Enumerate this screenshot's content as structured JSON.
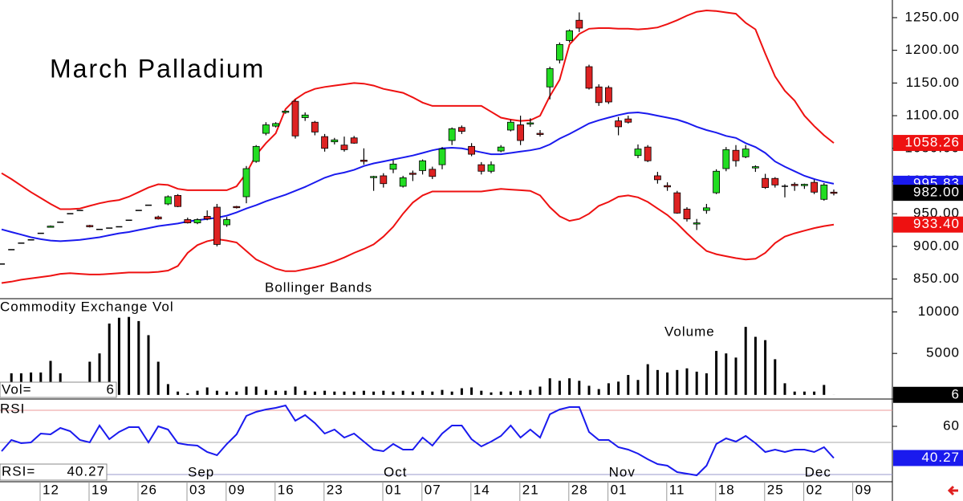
{
  "chart_data": [
    {
      "type": "candlestick",
      "title": "March Palladium",
      "annotation": "Bollinger Bands",
      "up_color": "#22dd22",
      "down_color": "#dd2222",
      "open": [
        873,
        895,
        905,
        910,
        920,
        930,
        937,
        950,
        955,
        932,
        926,
        928,
        930,
        940,
        955,
        963,
        945,
        965,
        978,
        941,
        936,
        946,
        960,
        933,
        961,
        976,
        1030,
        1073,
        1084,
        1105,
        1122,
        1097,
        1090,
        1068,
        1060,
        1055,
        1066,
        1032,
        1006,
        1008,
        1018,
        992,
        1012,
        1016,
        1018,
        1025,
        1062,
        1082,
        1053,
        1025,
        1015,
        1046,
        1078,
        1086,
        1088,
        1073,
        1144,
        1185,
        1215,
        1246,
        1175,
        1144,
        1143,
        1092,
        1095,
        1039,
        1052,
        1008,
        993,
        982,
        957,
        935,
        955,
        982,
        1019,
        1047,
        1037,
        1020,
        1004,
        1004,
        992,
        995,
        993,
        998,
        972,
        983,
        null,
        null,
        null
      ],
      "high": [
        873,
        895,
        905,
        910,
        920,
        932,
        937,
        950,
        955,
        933,
        926,
        928,
        930,
        940,
        955,
        963,
        947,
        978,
        980,
        944,
        943,
        955,
        965,
        945,
        962,
        1023,
        1055,
        1090,
        1090,
        1108,
        1125,
        1105,
        1092,
        1072,
        1066,
        1068,
        1069,
        1050,
        1008,
        1012,
        1032,
        1008,
        1016,
        1033,
        1022,
        1052,
        1082,
        1085,
        1058,
        1029,
        1030,
        1055,
        1094,
        1100,
        1096,
        1078,
        1175,
        1212,
        1232,
        1258,
        1178,
        1148,
        1146,
        1098,
        1100,
        1056,
        1055,
        1014,
        998,
        985,
        960,
        942,
        965,
        1018,
        1052,
        1055,
        1055,
        1024,
        1011,
        1006,
        995,
        998,
        996,
        1002,
        997,
        987,
        null,
        null,
        null
      ],
      "low": [
        873,
        895,
        905,
        910,
        920,
        929,
        937,
        950,
        955,
        929,
        926,
        928,
        930,
        940,
        955,
        963,
        941,
        963,
        960,
        935,
        934,
        940,
        900,
        930,
        958,
        966,
        1028,
        1070,
        1082,
        1103,
        1065,
        1092,
        1070,
        1045,
        1056,
        1045,
        1057,
        1025,
        985,
        990,
        1012,
        990,
        1000,
        1010,
        1003,
        1018,
        1055,
        1072,
        1038,
        1010,
        1012,
        1044,
        1076,
        1055,
        1083,
        1068,
        1125,
        1180,
        1212,
        1228,
        1140,
        1115,
        1118,
        1070,
        1088,
        1035,
        1029,
        996,
        985,
        950,
        938,
        925,
        950,
        980,
        1015,
        1022,
        1035,
        1014,
        988,
        990,
        975,
        985,
        988,
        980,
        970,
        978,
        null,
        null,
        null
      ],
      "close": [
        873,
        895,
        905,
        910,
        920,
        931,
        937,
        950,
        955,
        930,
        926,
        928,
        930,
        940,
        955,
        963,
        942,
        976,
        961,
        936,
        941,
        942,
        903,
        941,
        960,
        1019,
        1053,
        1086,
        1088,
        1107,
        1069,
        1101,
        1075,
        1050,
        1063,
        1048,
        1058,
        1030,
        1007,
        996,
        1026,
        1005,
        1011,
        1031,
        1007,
        1049,
        1080,
        1076,
        1041,
        1015,
        1025,
        1052,
        1090,
        1062,
        1089,
        1072,
        1172,
        1209,
        1230,
        1234,
        1142,
        1120,
        1121,
        1083,
        1090,
        1049,
        1031,
        1002,
        991,
        951,
        942,
        936,
        959,
        1015,
        1048,
        1031,
        1049,
        1022,
        990,
        994,
        992,
        993,
        995,
        983,
        994,
        982,
        null,
        null,
        null
      ],
      "close_label": "982.00",
      "series": [
        {
          "color": "#ee1111",
          "values": [
            1012,
            1003,
            993,
            983,
            974,
            965,
            957,
            957,
            958,
            962,
            966,
            969,
            971,
            976,
            983,
            990,
            995,
            994,
            988,
            986,
            986,
            986,
            986,
            986,
            992,
            1012,
            1040,
            1058,
            1073,
            1110,
            1125,
            1135,
            1141,
            1144,
            1146,
            1148,
            1150,
            1149,
            1146,
            1141,
            1138,
            1135,
            1128,
            1120,
            1115,
            1115,
            1115,
            1115,
            1115,
            1115,
            1106,
            1097,
            1094,
            1092,
            1093,
            1100,
            1130,
            1155,
            1209,
            1225,
            1233,
            1234,
            1234,
            1233,
            1233,
            1232,
            1233,
            1235,
            1240,
            1246,
            1253,
            1259,
            1261,
            1260,
            1258,
            1256,
            1242,
            1232,
            1195,
            1160,
            1138,
            1123,
            1100,
            1084,
            1070,
            1058.26,
            null,
            null,
            null
          ]
        },
        {
          "color": "#1a1aee",
          "values": [
            926,
            922,
            918,
            914,
            911,
            909,
            908,
            909,
            910,
            912,
            914,
            917,
            920,
            922,
            925,
            928,
            931,
            933,
            935,
            938,
            940,
            942,
            944,
            947,
            952,
            958,
            963,
            969,
            974,
            979,
            985,
            991,
            998,
            1005,
            1010,
            1013,
            1017,
            1023,
            1027,
            1030,
            1033,
            1036,
            1039,
            1043,
            1047,
            1050,
            1051,
            1050,
            1047,
            1044,
            1041,
            1041,
            1043,
            1045,
            1047,
            1050,
            1056,
            1065,
            1072,
            1080,
            1088,
            1093,
            1097,
            1101,
            1104,
            1105,
            1103,
            1100,
            1097,
            1094,
            1089,
            1083,
            1078,
            1074,
            1069,
            1066,
            1058,
            1052,
            1043,
            1030,
            1022,
            1015,
            1008,
            1003,
            999,
            995.83,
            null,
            null,
            null
          ]
        },
        {
          "color": "#ee1111",
          "last_label": "933.40",
          "values": [
            844,
            846,
            849,
            851,
            853,
            855,
            858,
            859,
            858,
            857,
            857,
            858,
            859,
            860,
            860,
            860,
            861,
            863,
            870,
            890,
            902,
            908,
            911,
            909,
            906,
            893,
            880,
            873,
            866,
            862,
            862,
            865,
            868,
            872,
            877,
            883,
            890,
            896,
            903,
            915,
            930,
            950,
            967,
            978,
            984,
            984,
            984,
            984,
            984,
            984,
            986,
            988,
            987,
            986,
            985,
            978,
            960,
            946,
            939,
            942,
            950,
            962,
            968,
            976,
            978,
            975,
            968,
            958,
            948,
            935,
            920,
            906,
            893,
            888,
            885,
            882,
            880,
            881,
            890,
            905,
            915,
            920,
            924,
            928,
            931,
            933.4,
            null,
            null,
            null
          ]
        }
      ],
      "ylim": [
        820,
        1277
      ],
      "yticks": [
        {
          "value": 850,
          "label": "850.00"
        },
        {
          "value": 900,
          "label": "900.00"
        },
        {
          "value": 950,
          "label": "950.00"
        },
        {
          "value": 1000,
          "label": "1000.00"
        },
        {
          "value": 1050,
          "label": "1050.00"
        },
        {
          "value": 1100,
          "label": "1100.00"
        },
        {
          "value": 1150,
          "label": "1150.00"
        },
        {
          "value": 1200,
          "label": "1200.00"
        },
        {
          "value": 1250,
          "label": "1250.00"
        }
      ]
    },
    {
      "type": "bar",
      "title": "Commodity Exchange Vol",
      "annotation": "Volume",
      "value_name": "Vol=",
      "color": "#000000",
      "values": [
        0,
        2600,
        2600,
        2700,
        2700,
        4100,
        2600,
        0,
        0,
        4000,
        5000,
        8600,
        9300,
        9400,
        8900,
        7200,
        4000,
        1300,
        400,
        200,
        500,
        900,
        500,
        400,
        400,
        1000,
        1000,
        600,
        500,
        500,
        1000,
        500,
        400,
        500,
        400,
        400,
        400,
        500,
        400,
        500,
        400,
        500,
        400,
        500,
        400,
        600,
        400,
        800,
        900,
        500,
        300,
        400,
        400,
        500,
        600,
        1000,
        2000,
        1700,
        2000,
        1700,
        1100,
        700,
        1400,
        1600,
        2400,
        1800,
        3700,
        3000,
        2700,
        3000,
        3200,
        2800,
        2600,
        5300,
        5000,
        4500,
        8200,
        7000,
        6600,
        4300,
        1400,
        400,
        400,
        400,
        1200,
        6,
        null,
        null,
        null
      ],
      "ylim": [
        -500,
        11600
      ],
      "yticks": [
        5000,
        10000
      ]
    },
    {
      "type": "line",
      "title": "RSI",
      "value_name": "RSI=",
      "categories": [
        null,
        null,
        null,
        null,
        null,
        "12",
        null,
        null,
        null,
        null,
        "19",
        null,
        null,
        null,
        null,
        "26",
        null,
        null,
        null,
        null,
        "03",
        null,
        null,
        null,
        "09",
        null,
        null,
        null,
        null,
        "16",
        null,
        null,
        null,
        null,
        "23",
        null,
        null,
        null,
        null,
        null,
        "01",
        null,
        null,
        null,
        "07",
        null,
        null,
        null,
        null,
        "14",
        null,
        null,
        null,
        null,
        "21",
        null,
        null,
        null,
        null,
        "28",
        null,
        null,
        null,
        "01",
        null,
        null,
        null,
        null,
        null,
        "11",
        null,
        null,
        null,
        null,
        "18",
        null,
        null,
        null,
        null,
        "25",
        null,
        null,
        null,
        "02",
        null,
        null,
        null,
        null,
        "09"
      ],
      "months": [
        null,
        null,
        null,
        null,
        null,
        null,
        null,
        null,
        null,
        null,
        null,
        null,
        null,
        null,
        null,
        null,
        null,
        null,
        null,
        null,
        "Sep",
        null,
        null,
        null,
        null,
        null,
        null,
        null,
        null,
        null,
        null,
        null,
        null,
        null,
        null,
        null,
        null,
        null,
        null,
        null,
        "Oct",
        null,
        null,
        null,
        null,
        null,
        null,
        null,
        null,
        null,
        null,
        null,
        null,
        null,
        null,
        null,
        null,
        null,
        null,
        null,
        null,
        null,
        null,
        "Nov",
        null,
        null,
        null,
        null,
        null,
        null,
        null,
        null,
        null,
        null,
        null,
        null,
        null,
        null,
        null,
        null,
        null,
        null,
        null,
        "Dec",
        null,
        null,
        null,
        null,
        null
      ],
      "series": [
        {
          "color": "#1a1aee",
          "values": [
            44.5,
            51.5,
            49.5,
            50,
            55.5,
            55,
            59,
            57,
            51.5,
            50,
            60.5,
            52,
            56.5,
            59.5,
            59.5,
            50,
            60,
            58,
            49.5,
            48.5,
            48,
            44,
            42,
            49,
            55,
            66.5,
            69,
            70.5,
            71.5,
            73,
            63.5,
            67,
            62,
            55.5,
            58,
            53,
            55.5,
            50.5,
            45.5,
            44.5,
            49,
            45.5,
            45.5,
            53,
            48,
            55.5,
            60.5,
            60.5,
            52,
            47.5,
            50.5,
            54,
            60.5,
            53,
            58,
            53,
            67.5,
            70.5,
            72,
            72,
            56.5,
            51.5,
            51.5,
            47,
            45.5,
            43,
            39.5,
            36.5,
            35.5,
            31.5,
            30.5,
            29.5,
            35.5,
            49,
            52.5,
            50.5,
            54,
            49.5,
            44,
            45.5,
            44,
            45.5,
            45.5,
            44,
            47,
            40.27,
            null,
            null,
            null
          ]
        }
      ],
      "hlines": [
        {
          "value": 70,
          "color": "#ee9999"
        },
        {
          "value": 50,
          "color": "#aaaaaa"
        },
        {
          "value": 30,
          "color": "#9999cc"
        }
      ],
      "ylim": [
        25.5,
        77
      ],
      "yticks": [
        60
      ]
    }
  ]
}
